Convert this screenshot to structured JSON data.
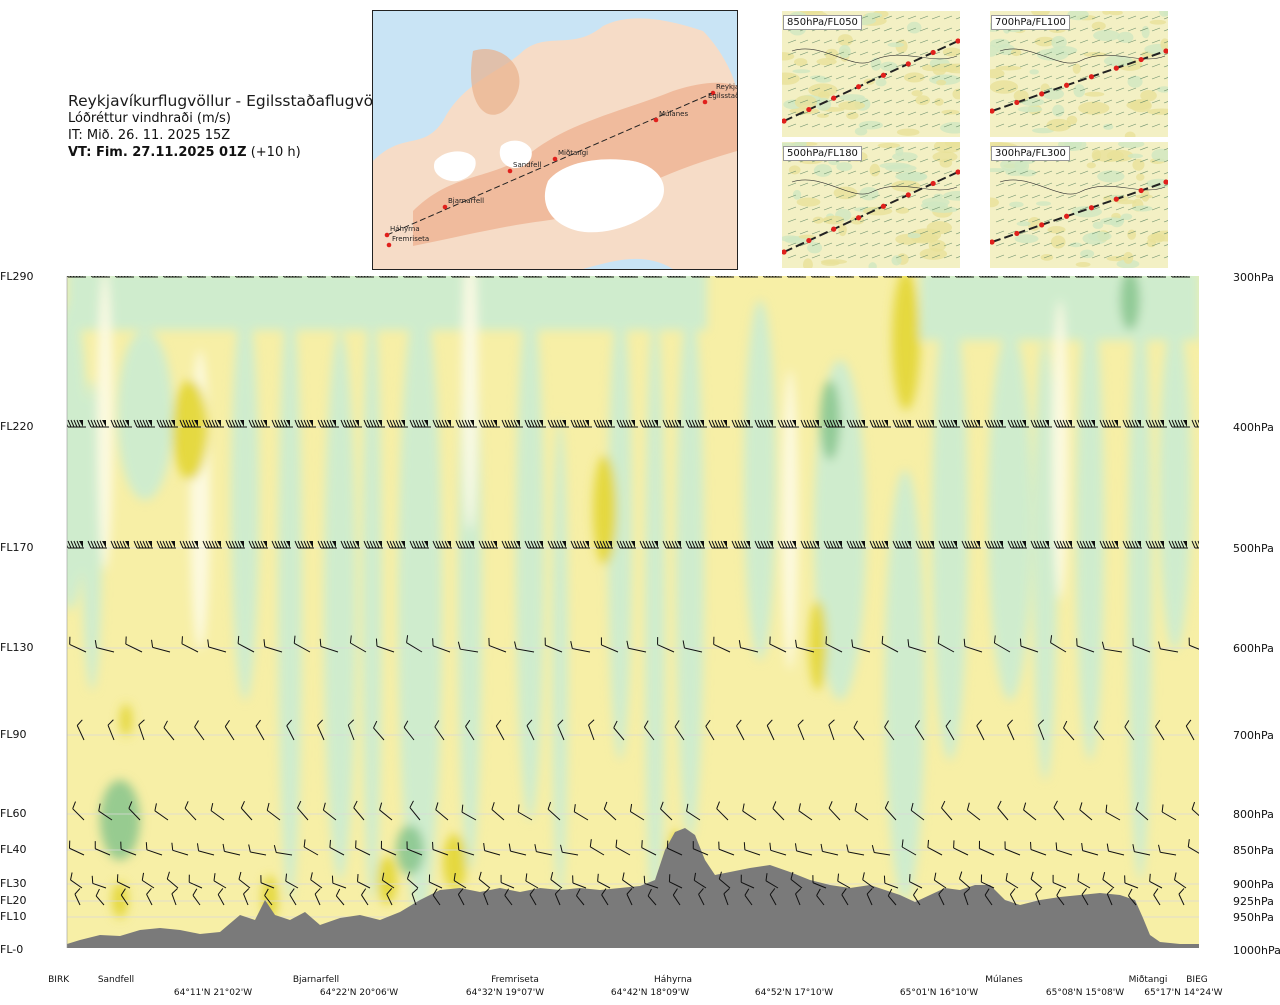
{
  "header": {
    "route": "Reykjavíkurflugvöllur - Egilsstaðaflugvöllur",
    "variable": "Lóðréttur vindhraði (m/s)",
    "issue_time": "IT: Mið. 26. 11. 2025 15Z",
    "valid_prefix": "VT: Fim. 27.11.2025 01Z",
    "valid_suffix": "(+10 h)"
  },
  "route_map": {
    "waypoints": [
      {
        "name": "Reykjavíkurflugvöllur"
      },
      {
        "name": "Sandfell"
      },
      {
        "name": "Bjarnarfell"
      },
      {
        "name": "Fremriseta"
      },
      {
        "name": "Háhyrna"
      },
      {
        "name": "Múlanes"
      },
      {
        "name": "Miðtangi"
      },
      {
        "name": "Egilsstaðir"
      }
    ]
  },
  "level_panels": [
    {
      "label": "850hPa/FL050"
    },
    {
      "label": "700hPa/FL100"
    },
    {
      "label": "500hPa/FL180"
    },
    {
      "label": "300hPa/FL300"
    }
  ],
  "levels": [
    {
      "fl": "FL290",
      "hpa": "300hPa"
    },
    {
      "fl": "FL220",
      "hpa": "400hPa"
    },
    {
      "fl": "FL170",
      "hpa": "500hPa"
    },
    {
      "fl": "FL130",
      "hpa": "600hPa"
    },
    {
      "fl": "FL90",
      "hpa": "700hPa"
    },
    {
      "fl": "FL60",
      "hpa": "800hPa"
    },
    {
      "fl": "FL40",
      "hpa": "850hPa"
    },
    {
      "fl": "FL30",
      "hpa": "900hPa"
    },
    {
      "fl": "FL20",
      "hpa": "925hPa"
    },
    {
      "fl": "FL10",
      "hpa": "950hPa"
    },
    {
      "fl": "FL-0",
      "hpa": "1000hPa"
    }
  ],
  "locations": [
    {
      "name": "BIRK"
    },
    {
      "name": "Sandfell"
    },
    {
      "name": "Bjarnarfell"
    },
    {
      "name": "Fremriseta"
    },
    {
      "name": "Háhyrna"
    },
    {
      "name": "Múlanes"
    },
    {
      "name": "Miðtangi"
    },
    {
      "name": "BIEG"
    }
  ],
  "coords": [
    "64°11'N 21°02'W",
    "64°22'N 20°06'W",
    "64°32'N 19°07'W",
    "64°42'N 18°09'W",
    "64°52'N 17°10'W",
    "65°01'N 16°10'W",
    "65°08'N 15°08'W",
    "65°17'N 14°24'W"
  ],
  "colors": {
    "rising_strong": "#e4d73a",
    "rising": "#f7efa6",
    "neutral": "#fdfbe6",
    "sinking": "#cfeccd",
    "sinking_strong": "#86c48c",
    "terrain": "#7a7a7a"
  }
}
